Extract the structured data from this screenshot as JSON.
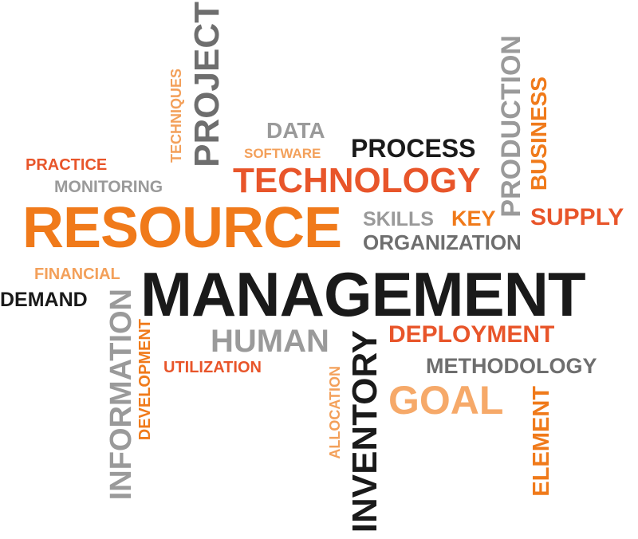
{
  "words": {
    "resource": "RESOURCE",
    "management": "MANAGEMENT",
    "technology": "TECHNOLOGY",
    "process": "PROCESS",
    "data": "DATA",
    "software": "SOFTWARE",
    "practice": "PRACTICE",
    "monitoring": "MONITORING",
    "skills": "SKILLS",
    "key": "KEY",
    "supply": "SUPPLY",
    "organization": "ORGANIZATION",
    "financial": "FINANCIAL",
    "demand": "DEMAND",
    "human": "HUMAN",
    "deployment": "DEPLOYMENT",
    "utilization": "UTILIZATION",
    "methodology": "METHODOLOGY",
    "goal": "GOAL",
    "project": "PROJECT",
    "techniques": "TECHNIQUES",
    "production": "PRODUCTION",
    "business": "BUSINESS",
    "information": "INFORMATION",
    "development": "DEVELOPMENT",
    "allocation": "ALLOCATION",
    "inventory": "INVENTORY",
    "element": "ELEMENT"
  },
  "palette": {
    "black": "#1a1a1a",
    "gray": "#9a9a9a",
    "dark_gray": "#6e6e6e",
    "orange": "#f07a1a",
    "red_orange": "#e8552a",
    "light_orange": "#f3a05a"
  }
}
